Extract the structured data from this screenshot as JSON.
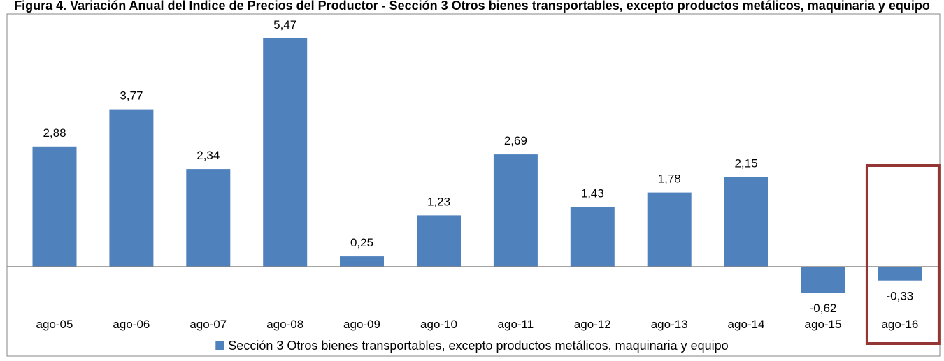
{
  "chart_data": {
    "type": "bar",
    "title": "Figura 4. Variación Anual del Índice de Precios del Productor - Sección 3 Otros bienes transportables, excepto productos metálicos, maquinaria y equipo",
    "categories": [
      "ago-05",
      "ago-06",
      "ago-07",
      "ago-08",
      "ago-09",
      "ago-10",
      "ago-11",
      "ago-12",
      "ago-13",
      "ago-14",
      "ago-15",
      "ago-16"
    ],
    "series": [
      {
        "name": "Sección 3 Otros bienes transportables, excepto productos metálicos, maquinaria y equipo",
        "values": [
          2.88,
          3.77,
          2.34,
          5.47,
          0.25,
          1.23,
          2.69,
          1.43,
          1.78,
          2.15,
          -0.62,
          -0.33
        ],
        "labels": [
          "2,88",
          "3,77",
          "2,34",
          "5,47",
          "0,25",
          "1,23",
          "2,69",
          "1,43",
          "1,78",
          "2,15",
          "-0,62",
          "-0,33"
        ],
        "color": "#4F81BD"
      }
    ],
    "highlight": {
      "category": "ago-16",
      "color": "#943634"
    },
    "legend_position": "bottom",
    "grid": false
  }
}
